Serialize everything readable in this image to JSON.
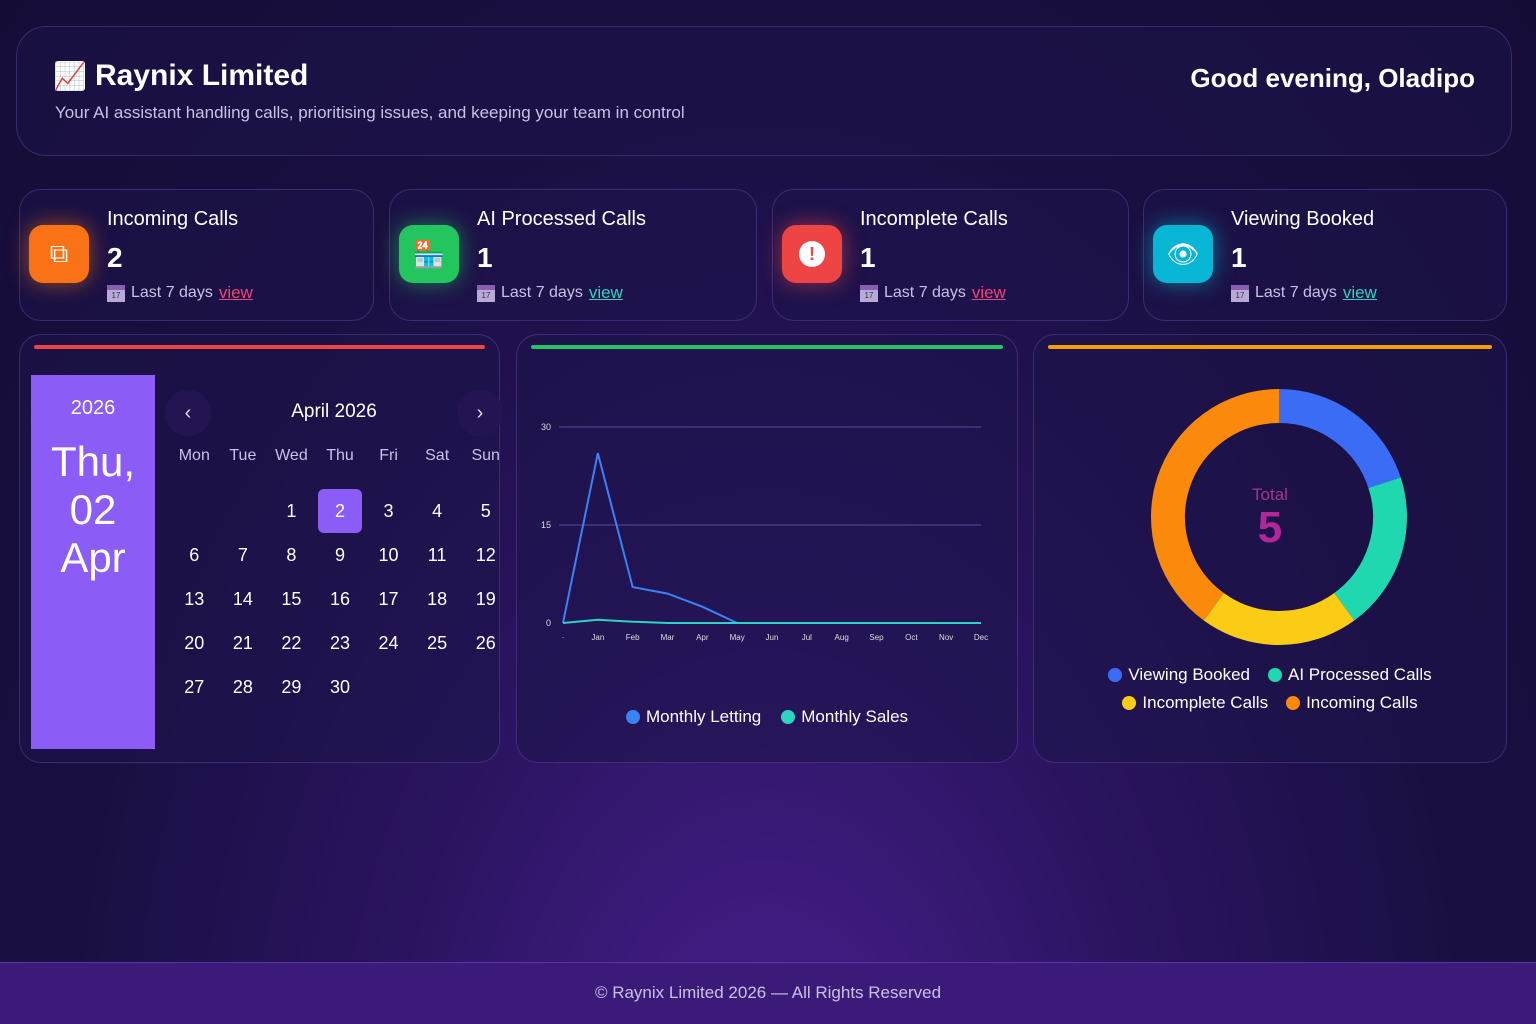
{
  "header": {
    "icon": "chart-increasing-icon",
    "title": "Raynix Limited",
    "subtitle": "Your AI assistant handling calls, prioritising issues, and keeping your team in control",
    "greeting": "Good evening, Oladipo"
  },
  "stats": [
    {
      "label": "Incoming Calls",
      "value": "2",
      "period": "Last 7 days",
      "link": "view",
      "icon": "copy-icon",
      "color": "#f97316",
      "link_color": "#f0437a"
    },
    {
      "label": "AI Processed Calls",
      "value": "1",
      "period": "Last 7 days",
      "link": "view",
      "icon": "store-icon",
      "color": "#22c55e",
      "link_color": "#2dd4bf"
    },
    {
      "label": "Incomplete Calls",
      "value": "1",
      "period": "Last 7 days",
      "link": "view",
      "icon": "alert-icon",
      "color": "#ef4444",
      "link_color": "#f0437a"
    },
    {
      "label": "Viewing Booked",
      "value": "1",
      "period": "Last 7 days",
      "link": "view",
      "icon": "eye-icon",
      "color": "#06b6d4",
      "link_color": "#2dd4bf"
    }
  ],
  "calendar": {
    "year": "2026",
    "weekday": "Thu,",
    "day": "02",
    "month_short": "Apr",
    "month_label": "April 2026",
    "weekdays": [
      "Mon",
      "Tue",
      "Wed",
      "Thu",
      "Fri",
      "Sat",
      "Sun"
    ],
    "first_offset": 2,
    "days_in_month": 30,
    "selected": 2,
    "accent": "#ef4444"
  },
  "chart_data": [
    {
      "type": "line",
      "accent": "#22c55e",
      "x": [
        "·",
        "Jan",
        "Feb",
        "Mar",
        "Apr",
        "May",
        "Jun",
        "Jul",
        "Aug",
        "Sep",
        "Oct",
        "Nov",
        "Dec"
      ],
      "yticks": [
        0,
        15,
        30
      ],
      "ylim": [
        0,
        30
      ],
      "grid": true,
      "legend": "bottom",
      "series": [
        {
          "name": "Monthly Letting",
          "color": "#3b82f6",
          "values": [
            0,
            26,
            5.5,
            4.5,
            2.5,
            0,
            0,
            0,
            0,
            0,
            0,
            0,
            0
          ]
        },
        {
          "name": "Monthly Sales",
          "color": "#2dd4bf",
          "values": [
            0,
            0.5,
            0.2,
            0,
            0,
            0,
            0,
            0,
            0,
            0,
            0,
            0,
            0
          ]
        }
      ]
    },
    {
      "type": "pie",
      "accent": "#f59e0b",
      "center_label": "Total",
      "total": "5",
      "legend": "bottom",
      "slices": [
        {
          "name": "Viewing Booked",
          "value": 1,
          "color": "#3b6cf6"
        },
        {
          "name": "AI Processed Calls",
          "value": 1,
          "color": "#1fd8b0"
        },
        {
          "name": "Incomplete Calls",
          "value": 1,
          "color": "#facc15"
        },
        {
          "name": "Incoming Calls",
          "value": 2,
          "color": "#fb8a0c"
        }
      ]
    }
  ],
  "footer": {
    "text": "© Raynix Limited 2026 — All Rights Reserved"
  }
}
